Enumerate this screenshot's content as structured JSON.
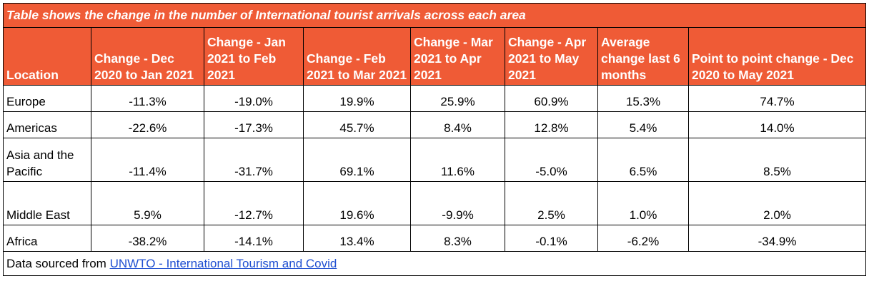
{
  "title": "Table shows the change in the number of International tourist arrivals across each area",
  "columns": [
    "Location",
    "Change - Dec 2020 to Jan 2021",
    "Change - Jan 2021 to Feb 2021",
    "Change - Feb 2021 to Mar 2021",
    "Change - Mar 2021 to Apr 2021",
    "Change - Apr 2021 to May 2021",
    "Average change last 6 months",
    "Point to point change - Dec 2020 to May 2021"
  ],
  "rows": [
    {
      "location": "Europe",
      "values": [
        "-11.3%",
        "-19.0%",
        "19.9%",
        "25.9%",
        "60.9%",
        "15.3%",
        "74.7%"
      ]
    },
    {
      "location": "Americas",
      "values": [
        "-22.6%",
        "-17.3%",
        "45.7%",
        "8.4%",
        "12.8%",
        "5.4%",
        "14.0%"
      ]
    },
    {
      "location": "Asia and the Pacific",
      "values": [
        "-11.4%",
        "-31.7%",
        "69.1%",
        "11.6%",
        "-5.0%",
        "6.5%",
        "8.5%"
      ]
    },
    {
      "location": "Middle East",
      "values": [
        "5.9%",
        "-12.7%",
        "19.6%",
        "-9.9%",
        "2.5%",
        "1.0%",
        "2.0%"
      ]
    },
    {
      "location": "Africa",
      "values": [
        "-38.2%",
        "-14.1%",
        "13.4%",
        "8.3%",
        "-0.1%",
        "-6.2%",
        "-34.9%"
      ]
    }
  ],
  "source": {
    "prefix": "Data sourced from ",
    "link_text": "UNWTO - International Tourism and Covid"
  },
  "colors": {
    "header_bg": "#ef5b36",
    "header_text": "#ffffff",
    "link": "#1f4fd1"
  }
}
